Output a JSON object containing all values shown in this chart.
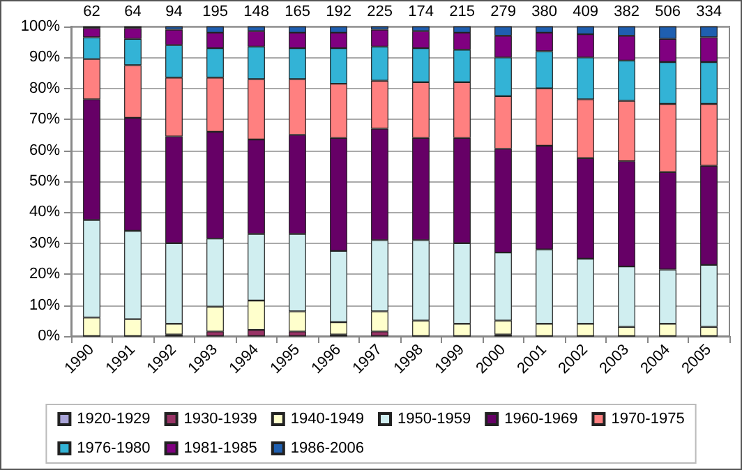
{
  "chart_data": {
    "type": "bar",
    "stacked": true,
    "categories": [
      "1990",
      "1991",
      "1992",
      "1993",
      "1994",
      "1995",
      "1996",
      "1997",
      "1998",
      "1999",
      "2000",
      "2001",
      "2002",
      "2003",
      "2004",
      "2005"
    ],
    "series": [
      {
        "name": "1920-1929",
        "color": "#a9a4d8",
        "values": [
          0,
          0,
          0,
          0,
          0,
          0,
          0,
          0,
          0,
          0,
          0,
          0,
          0,
          0,
          0,
          0
        ]
      },
      {
        "name": "1930-1939",
        "color": "#993366",
        "values": [
          0,
          0,
          0.5,
          1.5,
          2,
          1.5,
          0.5,
          1.5,
          0,
          0,
          0.5,
          0,
          0,
          0,
          0,
          0
        ]
      },
      {
        "name": "1940-1949",
        "color": "#ffffcc",
        "values": [
          6,
          5.5,
          3.5,
          8,
          9.5,
          6.5,
          4,
          6.5,
          5,
          4,
          4.5,
          4,
          4,
          3,
          4,
          3
        ]
      },
      {
        "name": "1950-1959",
        "color": "#d0eef0",
        "values": [
          31.5,
          28.5,
          26,
          22,
          21.5,
          25,
          23,
          23,
          26,
          26,
          22,
          24,
          21,
          19.5,
          17.5,
          20
        ]
      },
      {
        "name": "1960-1969",
        "color": "#660066",
        "values": [
          39,
          36.5,
          34.5,
          34.5,
          30.5,
          32,
          36.5,
          36,
          33,
          34,
          33.5,
          33.5,
          32.5,
          34,
          31.5,
          32
        ]
      },
      {
        "name": "1970-1975",
        "color": "#ff8080",
        "values": [
          13,
          17,
          19,
          17.5,
          19.5,
          18,
          17.5,
          15.5,
          18,
          18,
          17,
          18.5,
          19,
          19.5,
          22,
          20
        ]
      },
      {
        "name": "1976-1980",
        "color": "#33b3d6",
        "values": [
          7,
          8.5,
          10.5,
          9.5,
          10.5,
          10,
          11.5,
          11,
          11,
          10.5,
          12.5,
          12,
          13.5,
          13,
          13.5,
          13.5
        ]
      },
      {
        "name": "1981-1985",
        "color": "#800080",
        "values": [
          3,
          3.5,
          5,
          5,
          5,
          5,
          5,
          5.5,
          5.5,
          5.5,
          7,
          6,
          7.5,
          8,
          7.5,
          8
        ]
      },
      {
        "name": "1986-2006",
        "color": "#1f5fb0",
        "values": [
          0.5,
          0.5,
          1,
          2,
          1.5,
          2,
          2,
          1,
          1.5,
          2,
          3,
          2,
          2.5,
          3,
          4,
          3.5
        ]
      }
    ],
    "annotations": [
      "62",
      "64",
      "94",
      "195",
      "148",
      "165",
      "192",
      "225",
      "174",
      "215",
      "279",
      "380",
      "409",
      "382",
      "506",
      "334"
    ],
    "ylim": [
      0,
      100
    ],
    "yticks": [
      {
        "value": 0,
        "label": "0%"
      },
      {
        "value": 10,
        "label": "10%"
      },
      {
        "value": 20,
        "label": "20%"
      },
      {
        "value": 30,
        "label": "30%"
      },
      {
        "value": 40,
        "label": "40%"
      },
      {
        "value": 50,
        "label": "50%"
      },
      {
        "value": 60,
        "label": "60%"
      },
      {
        "value": 70,
        "label": "70%"
      },
      {
        "value": 80,
        "label": "80%"
      },
      {
        "value": 90,
        "label": "90%"
      },
      {
        "value": 100,
        "label": "100%"
      }
    ],
    "grid": "y",
    "legend": "bottom"
  }
}
